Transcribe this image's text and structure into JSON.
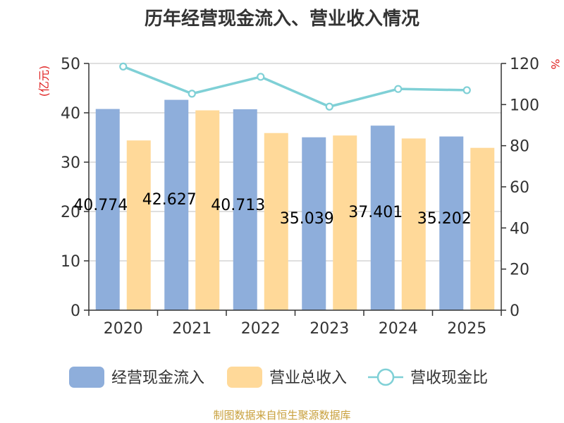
{
  "chart_data": {
    "type": "bar",
    "title": "历年经营现金流入、营业收入情况",
    "ylabel": "(亿元)",
    "y2label": "%",
    "categories": [
      "2020",
      "2021",
      "2022",
      "2023",
      "2024",
      "2025"
    ],
    "ylim": [
      0,
      50
    ],
    "yticks": [
      0,
      10,
      20,
      30,
      40,
      50
    ],
    "y2lim": [
      0,
      120
    ],
    "y2ticks": [
      0,
      20,
      40,
      60,
      80,
      100,
      120
    ],
    "grid": true,
    "legend_position": "bottom",
    "series": [
      {
        "name": "经营现金流入",
        "type": "bar",
        "axis": "left",
        "color": "#8eaedb",
        "values": [
          40.774,
          42.627,
          40.713,
          35.039,
          37.401,
          35.202
        ],
        "labels": [
          "40.774",
          "42.627",
          "40.713",
          "35.039",
          "37.401",
          "35.202"
        ]
      },
      {
        "name": "营业总收入",
        "type": "bar",
        "axis": "left",
        "color": "#ffd999",
        "values": [
          34.4,
          40.5,
          35.9,
          35.4,
          34.8,
          32.9
        ]
      },
      {
        "name": "营收现金比",
        "type": "line",
        "axis": "right",
        "color": "#7fd0d6",
        "values": [
          118.5,
          105.3,
          113.5,
          99.0,
          107.6,
          107.0
        ]
      }
    ],
    "source": "制图数据来自恒生聚源数据库"
  }
}
